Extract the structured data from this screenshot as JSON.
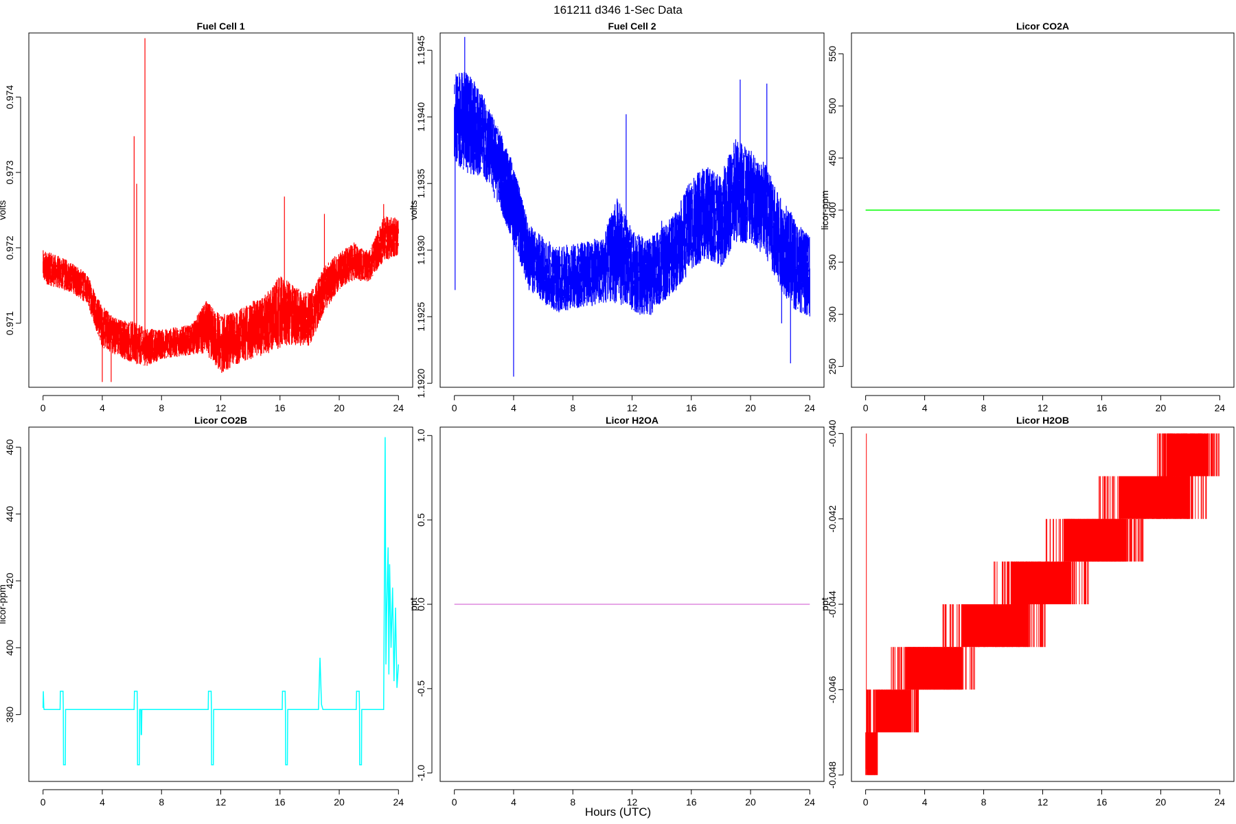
{
  "figure": {
    "title": "161211   d346   1-Sec Data",
    "xlabel": "Hours (UTC)"
  },
  "chart_data": [
    {
      "type": "line",
      "title": "Fuel Cell 1",
      "ylabel": "volts",
      "color": "#ff0000",
      "xlim": [
        0,
        24
      ],
      "ylim": [
        0.97015,
        0.97485
      ],
      "xticks": [
        "0",
        "4",
        "8",
        "12",
        "16",
        "20",
        "24"
      ],
      "yticks": [
        {
          "v": 0.971,
          "label": "0.971"
        },
        {
          "v": 0.972,
          "label": "0.972"
        },
        {
          "v": 0.973,
          "label": "0.973"
        },
        {
          "v": 0.974,
          "label": "0.974"
        }
      ],
      "x": [
        0,
        1,
        2,
        3,
        4,
        5,
        6,
        7,
        8,
        9,
        10,
        11,
        12,
        13,
        14,
        15,
        16,
        17,
        18,
        19,
        20,
        21,
        22,
        23,
        24
      ],
      "y": [
        0.97175,
        0.97168,
        0.9716,
        0.97145,
        0.97095,
        0.97082,
        0.97075,
        0.97068,
        0.97072,
        0.97075,
        0.97078,
        0.97095,
        0.97072,
        0.9708,
        0.9709,
        0.97098,
        0.97115,
        0.9711,
        0.97105,
        0.97145,
        0.9717,
        0.97182,
        0.97175,
        0.97212,
        0.97215
      ],
      "band": [
        0.00022,
        0.00022,
        0.0002,
        0.0002,
        0.00028,
        0.00025,
        0.00028,
        0.00025,
        0.0002,
        0.0002,
        0.0002,
        0.00035,
        0.0004,
        0.00035,
        0.00038,
        0.0004,
        0.00048,
        0.0004,
        0.00035,
        0.0003,
        0.00025,
        0.00025,
        0.0002,
        0.0003,
        0.00025
      ],
      "spikes": [
        {
          "x": 6.15,
          "y": 0.97348
        },
        {
          "x": 6.32,
          "y": 0.97285
        },
        {
          "x": 6.88,
          "y": 0.97478
        },
        {
          "x": 4.0,
          "y": 0.97022
        },
        {
          "x": 4.6,
          "y": 0.97022
        },
        {
          "x": 16.3,
          "y": 0.97268
        },
        {
          "x": 19.0,
          "y": 0.97245
        },
        {
          "x": 23.0,
          "y": 0.97258
        }
      ]
    },
    {
      "type": "line",
      "title": "Fuel Cell 2",
      "ylabel": "volts",
      "color": "#0000ff",
      "xlim": [
        0,
        24
      ],
      "ylim": [
        1.19197,
        1.19463
      ],
      "xticks": [
        "0",
        "4",
        "8",
        "12",
        "16",
        "20",
        "24"
      ],
      "yticks": [
        {
          "v": 1.192,
          "label": "1.1920"
        },
        {
          "v": 1.1925,
          "label": "1.1925"
        },
        {
          "v": 1.193,
          "label": "1.1930"
        },
        {
          "v": 1.1935,
          "label": "1.1935"
        },
        {
          "v": 1.194,
          "label": "1.1940"
        },
        {
          "v": 1.1945,
          "label": "1.1945"
        }
      ],
      "x": [
        0,
        1,
        2,
        3,
        4,
        5,
        6,
        7,
        8,
        9,
        10,
        11,
        12,
        13,
        14,
        15,
        16,
        17,
        18,
        19,
        20,
        21,
        22,
        23,
        24
      ],
      "y": [
        1.194,
        1.19395,
        1.19385,
        1.19362,
        1.19335,
        1.19295,
        1.19285,
        1.19278,
        1.1928,
        1.19282,
        1.19285,
        1.193,
        1.19285,
        1.19278,
        1.19288,
        1.193,
        1.1932,
        1.19328,
        1.19322,
        1.19345,
        1.1934,
        1.1933,
        1.19305,
        1.1929,
        1.1928
      ],
      "band": [
        0.00035,
        0.00038,
        0.0003,
        0.0003,
        0.0003,
        0.00025,
        0.00025,
        0.00025,
        0.00025,
        0.00025,
        0.00025,
        0.0004,
        0.0003,
        0.0003,
        0.00028,
        0.0003,
        0.00035,
        0.00035,
        0.00035,
        0.0004,
        0.00035,
        0.00035,
        0.00035,
        0.00035,
        0.0003
      ],
      "spikes": [
        {
          "x": 0.05,
          "y": 1.1927
        },
        {
          "x": 0.7,
          "y": 1.1946
        },
        {
          "x": 4.0,
          "y": 1.19205
        },
        {
          "x": 11.6,
          "y": 1.19402
        },
        {
          "x": 14.0,
          "y": 1.19322
        },
        {
          "x": 19.3,
          "y": 1.19428
        },
        {
          "x": 21.1,
          "y": 1.19425
        },
        {
          "x": 22.7,
          "y": 1.19215
        },
        {
          "x": 22.1,
          "y": 1.19245
        }
      ]
    },
    {
      "type": "line",
      "title": "Licor CO2A",
      "ylabel": "licor-ppm",
      "color": "#00ff00",
      "xlim": [
        0,
        24
      ],
      "ylim": [
        230,
        570
      ],
      "xticks": [
        "0",
        "4",
        "8",
        "12",
        "16",
        "20",
        "24"
      ],
      "yticks": [
        {
          "v": 250,
          "label": "250"
        },
        {
          "v": 300,
          "label": "300"
        },
        {
          "v": 350,
          "label": "350"
        },
        {
          "v": 400,
          "label": "400"
        },
        {
          "v": 450,
          "label": "450"
        },
        {
          "v": 500,
          "label": "500"
        },
        {
          "v": 550,
          "label": "550"
        }
      ],
      "x": [
        0,
        24
      ],
      "y": [
        400,
        400
      ]
    },
    {
      "type": "line",
      "title": "Licor CO2B",
      "ylabel": "licor-ppm",
      "color": "#00ffff",
      "xlim": [
        0,
        24
      ],
      "ylim": [
        360,
        466
      ],
      "xticks": [
        "0",
        "4",
        "8",
        "12",
        "16",
        "20",
        "24"
      ],
      "yticks": [
        {
          "v": 380,
          "label": "380"
        },
        {
          "v": 400,
          "label": "400"
        },
        {
          "v": 420,
          "label": "420"
        },
        {
          "v": 440,
          "label": "440"
        },
        {
          "v": 460,
          "label": "460"
        }
      ],
      "x": [
        0,
        0.02,
        0.05,
        0.07,
        1.15,
        1.17,
        1.35,
        1.37,
        1.38,
        1.5,
        1.52,
        1.6,
        1.62,
        3,
        6.15,
        6.17,
        6.35,
        6.37,
        6.38,
        6.5,
        6.52,
        6.6,
        6.62,
        6.65,
        6.67,
        11.15,
        11.17,
        11.35,
        11.37,
        11.38,
        11.5,
        11.52,
        11.6,
        11.62,
        16.15,
        16.17,
        16.35,
        16.37,
        16.38,
        16.5,
        16.52,
        16.6,
        16.62,
        18.6,
        18.7,
        18.8,
        18.9,
        19.0,
        21.15,
        21.17,
        21.35,
        21.37,
        21.38,
        21.5,
        21.52,
        21.6,
        21.62,
        23.0,
        23.05,
        23.1,
        23.15,
        23.2,
        23.3,
        23.35,
        23.4,
        23.5,
        23.6,
        23.7,
        23.8,
        23.9,
        24.0
      ],
      "y": [
        382,
        387,
        382,
        381.5,
        381.5,
        387,
        387,
        381.5,
        365,
        365,
        381.5,
        381.5,
        381.5,
        381.5,
        381.5,
        387,
        387,
        381.5,
        365,
        365,
        381.5,
        381.5,
        374,
        374,
        381.5,
        381.5,
        387,
        387,
        381.5,
        365,
        365,
        381.5,
        381.5,
        381.5,
        381.5,
        387,
        387,
        381.5,
        365,
        365,
        381.5,
        381.5,
        381.5,
        381.5,
        397,
        383,
        381.5,
        381.5,
        381.5,
        387,
        387,
        381.5,
        365,
        365,
        381.5,
        381.5,
        381.5,
        381.5,
        420,
        463,
        395,
        410,
        430,
        392,
        425,
        400,
        418,
        390,
        412,
        388,
        395
      ]
    },
    {
      "type": "line",
      "title": "Licor H2OA",
      "ylabel": "ppt",
      "color": "#dd88dd",
      "xlim": [
        0,
        24
      ],
      "ylim": [
        -1.05,
        1.05
      ],
      "xticks": [
        "0",
        "4",
        "8",
        "12",
        "16",
        "20",
        "24"
      ],
      "yticks": [
        {
          "v": -1.0,
          "label": "-1.0"
        },
        {
          "v": -0.5,
          "label": "-0.5"
        },
        {
          "v": 0.0,
          "label": "0.0"
        },
        {
          "v": 0.5,
          "label": "0.5"
        },
        {
          "v": 1.0,
          "label": "1.0"
        }
      ],
      "x": [
        0,
        24
      ],
      "y": [
        0,
        0
      ]
    },
    {
      "type": "line",
      "title": "Licor H2OB",
      "ylabel": "ppt",
      "color": "#ff0000",
      "xlim": [
        0,
        24
      ],
      "ylim": [
        -0.04815,
        -0.03985
      ],
      "xticks": [
        "0",
        "4",
        "8",
        "12",
        "16",
        "20",
        "24"
      ],
      "yticks": [
        {
          "v": -0.048,
          "label": "-0.048"
        },
        {
          "v": -0.046,
          "label": "-0.046"
        },
        {
          "v": -0.044,
          "label": "-0.044"
        },
        {
          "v": -0.042,
          "label": "-0.042"
        },
        {
          "v": -0.04,
          "label": "-0.040"
        }
      ],
      "steps": [
        {
          "low": -0.048,
          "high": -0.047,
          "x0": 0.0,
          "x1": 0.8
        },
        {
          "low": -0.047,
          "high": -0.046,
          "x0": 0.0,
          "x1": 3.7
        },
        {
          "low": -0.046,
          "high": -0.045,
          "x0": 1.6,
          "x1": 7.6
        },
        {
          "low": -0.045,
          "high": -0.044,
          "x0": 5.2,
          "x1": 12.3
        },
        {
          "low": -0.044,
          "high": -0.043,
          "x0": 8.7,
          "x1": 15.1
        },
        {
          "low": -0.043,
          "high": -0.042,
          "x0": 12.2,
          "x1": 18.9
        },
        {
          "low": -0.042,
          "high": -0.041,
          "x0": 15.8,
          "x1": 23.3
        },
        {
          "low": -0.041,
          "high": -0.04,
          "x0": 19.7,
          "x1": 24.0
        }
      ],
      "spikes": [
        {
          "x": 0.05,
          "y": -0.04
        }
      ]
    }
  ]
}
